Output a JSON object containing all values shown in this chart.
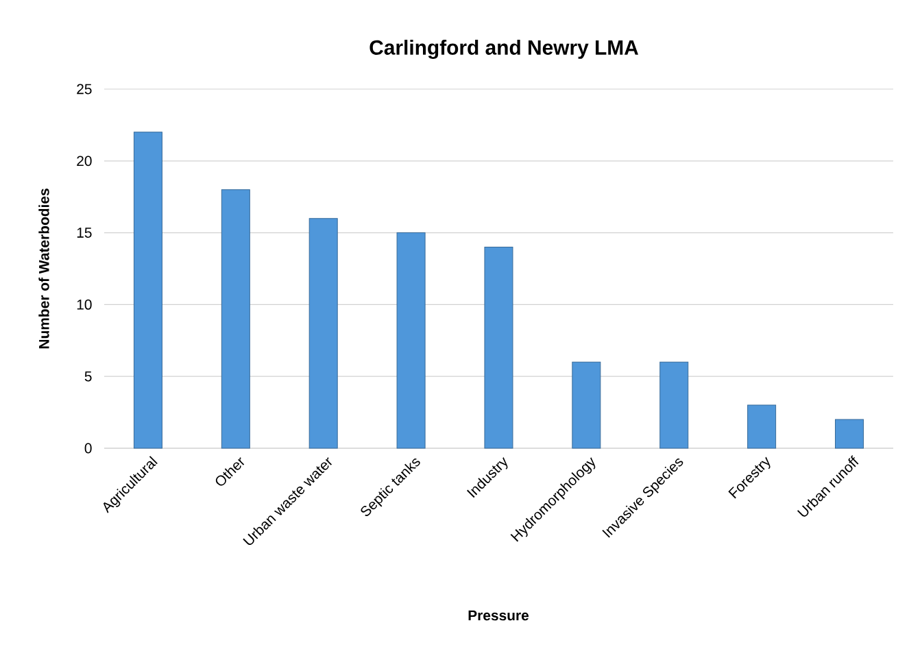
{
  "chart_data": {
    "type": "bar",
    "title": "Carlingford and Newry LMA",
    "xlabel": "Pressure",
    "ylabel": "Number of Waterbodies",
    "categories": [
      "Agricultural",
      "Other",
      "Urban waste water",
      "Septic tanks",
      "Industry",
      "Hydromorphology",
      "Invasive Species",
      "Forestry",
      "Urban runoff"
    ],
    "values": [
      22,
      18,
      16,
      15,
      14,
      6,
      6,
      3,
      2
    ],
    "color": "#4f97da",
    "ylim": [
      0,
      25
    ],
    "yticks": [
      0,
      5,
      10,
      15,
      20,
      25
    ],
    "grid": "y"
  }
}
